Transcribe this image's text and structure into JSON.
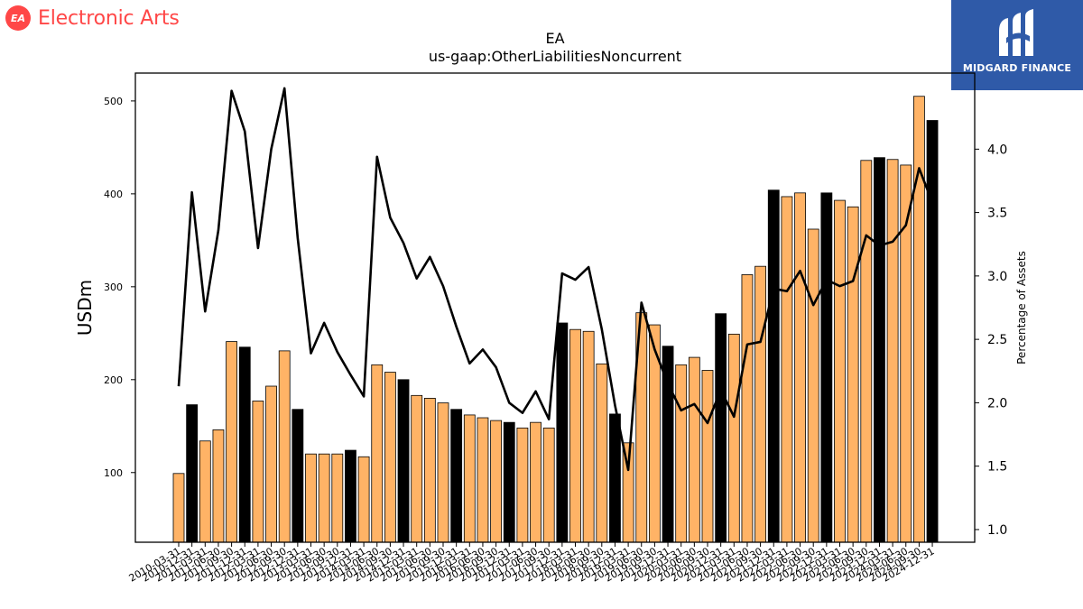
{
  "header": {
    "brand_badge": "EA",
    "brand_name": "Electronic Arts",
    "partner_name": "MIDGARD FINANCE"
  },
  "colors": {
    "bar_regular": "#ffb366",
    "bar_highlight": "#000000",
    "line": "#000000",
    "brand_red": "#ff4747",
    "partner_blue": "#2f5aa8"
  },
  "chart_data": {
    "type": "bar",
    "title": "EA",
    "subtitle": "us-gaap:OtherLiabilitiesNoncurrent",
    "ylabel": "USDm",
    "y2label": "Percentage of Assets",
    "ylim": [
      25,
      530
    ],
    "y2lim": [
      0.9,
      4.6
    ],
    "yticks": [
      100,
      200,
      300,
      400,
      500
    ],
    "y2ticks": [
      "1.0",
      "1.5",
      "2.0",
      "2.5",
      "3.0",
      "3.5",
      "4.0"
    ],
    "categories": [
      "2010-03-31",
      "2010-12-31",
      "2011-03-31",
      "2011-06-30",
      "2011-09-30",
      "2011-12-31",
      "2012-03-31",
      "2012-06-30",
      "2012-09-30",
      "2012-12-31",
      "2013-03-31",
      "2013-06-30",
      "2013-09-30",
      "2013-12-31",
      "2014-03-31",
      "2014-06-30",
      "2014-09-30",
      "2014-12-31",
      "2015-03-31",
      "2015-06-30",
      "2015-09-30",
      "2015-12-31",
      "2016-03-31",
      "2016-06-30",
      "2016-09-30",
      "2016-12-31",
      "2017-03-31",
      "2017-06-30",
      "2017-09-30",
      "2017-12-31",
      "2018-03-31",
      "2018-06-30",
      "2018-09-30",
      "2018-12-31",
      "2019-03-31",
      "2019-06-30",
      "2019-09-30",
      "2019-12-31",
      "2020-03-31",
      "2020-06-30",
      "2020-09-30",
      "2020-12-31",
      "2021-03-31",
      "2021-06-30",
      "2021-09-30",
      "2021-12-31",
      "2022-03-31",
      "2022-06-30",
      "2022-09-30",
      "2022-12-31",
      "2023-03-31",
      "2023-06-30",
      "2023-09-30",
      "2023-12-31",
      "2024-03-31",
      "2024-06-30",
      "2024-09-30",
      "2024-12-31"
    ],
    "values": [
      99,
      173,
      134,
      146,
      241,
      235,
      177,
      193,
      231,
      168,
      120,
      120,
      120,
      124,
      117,
      216,
      208,
      200,
      183,
      180,
      175,
      168,
      162,
      159,
      156,
      154,
      148,
      154,
      148,
      261,
      254,
      252,
      217,
      163,
      132,
      272,
      259,
      236,
      216,
      224,
      210,
      271,
      249,
      313,
      322,
      404,
      397,
      401,
      362,
      401,
      393,
      386,
      436,
      439,
      437,
      431,
      505,
      479
    ],
    "highlight": [
      false,
      true,
      false,
      false,
      false,
      true,
      false,
      false,
      false,
      true,
      false,
      false,
      false,
      true,
      false,
      false,
      false,
      true,
      false,
      false,
      false,
      true,
      false,
      false,
      false,
      true,
      false,
      false,
      false,
      true,
      false,
      false,
      false,
      true,
      false,
      false,
      false,
      true,
      false,
      false,
      false,
      true,
      false,
      false,
      false,
      true,
      false,
      false,
      false,
      true,
      false,
      false,
      false,
      true,
      false,
      false,
      false,
      true
    ],
    "line_values": [
      2.13,
      3.66,
      2.72,
      3.36,
      4.46,
      4.14,
      3.22,
      4.0,
      4.48,
      3.3,
      2.39,
      2.63,
      2.4,
      2.22,
      2.05,
      3.94,
      3.46,
      3.26,
      2.98,
      3.15,
      2.92,
      2.6,
      2.31,
      2.42,
      2.28,
      2.0,
      1.92,
      2.09,
      1.87,
      3.02,
      2.97,
      3.07,
      2.58,
      1.98,
      1.47,
      2.79,
      2.42,
      2.15,
      1.94,
      1.99,
      1.84,
      2.1,
      1.89,
      2.46,
      2.48,
      2.9,
      2.88,
      3.04,
      2.77,
      2.97,
      2.92,
      2.96,
      3.32,
      3.24,
      3.27,
      3.4,
      3.85,
      3.58
    ]
  }
}
